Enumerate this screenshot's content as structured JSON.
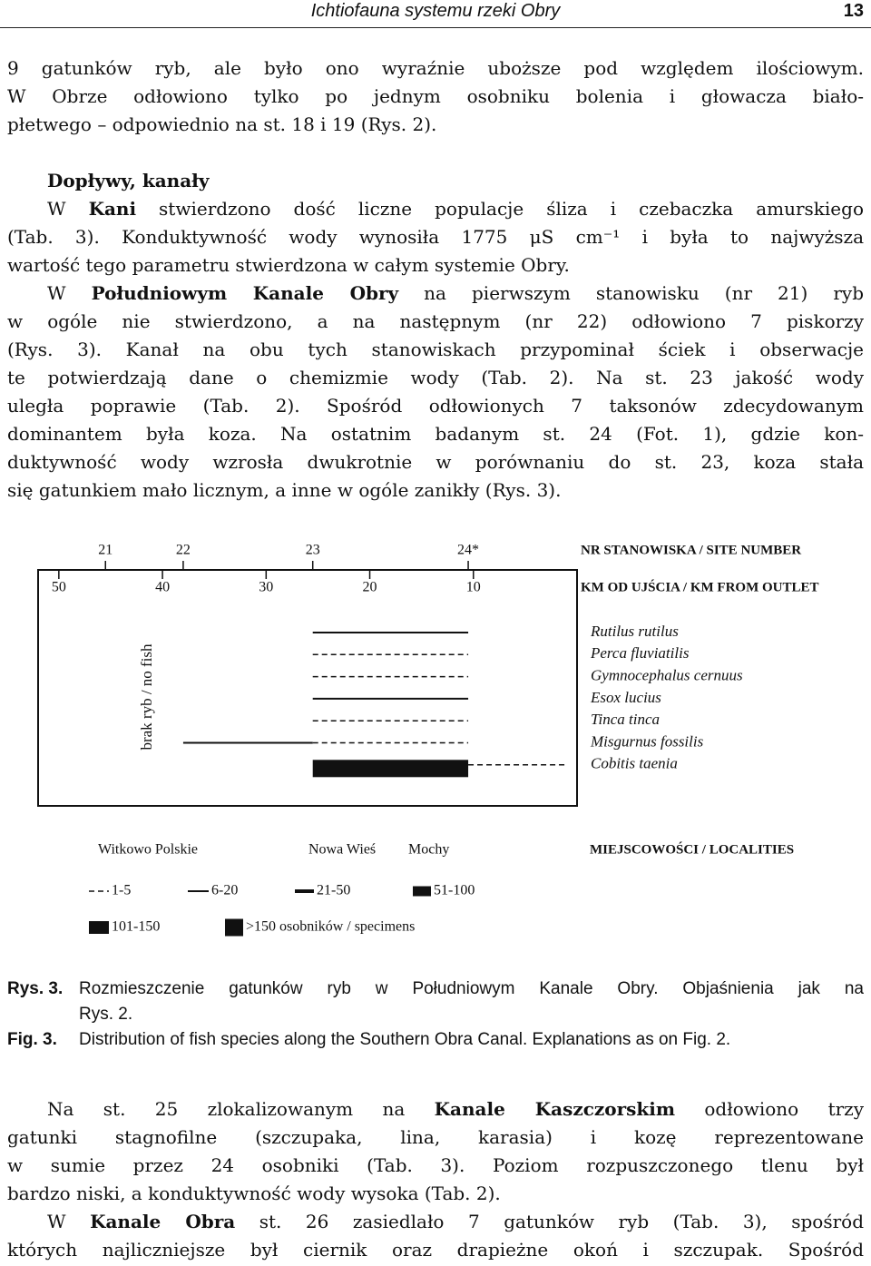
{
  "header": {
    "title": "Ichtiofauna systemu rzeki Obry",
    "page": "13"
  },
  "body_top": {
    "paragraph_1": [
      "9 gatunków ryb, ale było ono wyraźnie uboższe pod względem ilościowym.",
      "W Obrze odłowiono tylko po jednym osobniku bolenia i głowacza biało-",
      "płetwego – odpowiednio na st. 18 i 19 (Rys. 2)."
    ],
    "heading": "Dopływy, kanały",
    "paragraph_2": [
      [
        "W ",
        "Kani",
        " stwierdzono dość liczne populacje śliza i czebaczka amurskiego"
      ],
      "(Tab. 3). Konduktywność wody wynosiła 1775 μS cm⁻¹ i była to najwyższa",
      "wartość tego parametru stwierdzona w całym systemie Obry."
    ],
    "paragraph_3": [
      [
        "W ",
        "Południowym Kanale Obry",
        " na pierwszym stanowisku (nr 21) ryb"
      ],
      "w ogóle nie stwierdzono, a na następnym (nr 22) odłowiono 7 piskorzy",
      "(Rys. 3). Kanał na obu tych stanowiskach przypominał ściek i obserwacje",
      "te potwierdzają dane o chemizmie wody (Tab. 2). Na st. 23 jakość wody",
      "uległa poprawie (Tab. 2). Spośród odłowionych 7 taksonów zdecydowanym",
      "dominantem była koza. Na ostatnim badanym st. 24 (Fot. 1), gdzie kon-",
      "duktywność wody wzrosła dwukrotnie w porównaniu do st. 23, koza stała",
      "się gatunkiem mało licznym, a inne w ogóle zanikły (Rys. 3)."
    ]
  },
  "figure": {
    "site_axis_label": "NR STANOWISKA / SITE NUMBER",
    "sites": [
      {
        "label": "21",
        "km": 45.5
      },
      {
        "label": "22",
        "km": 38
      },
      {
        "label": "23",
        "km": 25.5
      },
      {
        "label": "24*",
        "km": 10.5
      }
    ],
    "km_axis_label": "KM OD UJŚCIA / KM FROM OUTLET",
    "km_lim": [
      52,
      0
    ],
    "km_ticks": [
      50,
      40,
      30,
      20,
      10
    ],
    "no_fish_label": "brak ryb / no fish",
    "species": [
      {
        "name": "Rutilus rutilus",
        "segments": [
          {
            "km": [
              25.5,
              10.5
            ],
            "class": 1
          }
        ]
      },
      {
        "name": "Perca fluviatilis",
        "segments": [
          {
            "km": [
              25.5,
              10.5
            ],
            "class": 0
          }
        ]
      },
      {
        "name": "Gymnocephalus cernuus",
        "segments": [
          {
            "km": [
              25.5,
              10.5
            ],
            "class": 0
          }
        ]
      },
      {
        "name": "Esox lucius",
        "segments": [
          {
            "km": [
              25.5,
              10.5
            ],
            "class": 1
          }
        ]
      },
      {
        "name": "Tinca tinca",
        "segments": [
          {
            "km": [
              25.5,
              10.5
            ],
            "class": 0
          }
        ]
      },
      {
        "name": "Misgurnus fossilis",
        "segments": [
          {
            "km": [
              38,
              25.5
            ],
            "class": 1
          },
          {
            "km": [
              25.5,
              10.5
            ],
            "class": 0
          }
        ]
      },
      {
        "name": "Cobitis taenia",
        "segments": [
          {
            "km": [
              25.5,
              10.5
            ],
            "class": 5
          },
          {
            "km": [
              10.5,
              1
            ],
            "class": 0
          }
        ]
      }
    ],
    "localities": [
      "Witkowo Polskie",
      "Nowa Wieś",
      "Mochy"
    ],
    "localities_label": "MIEJSCOWOŚCI / LOCALITIES",
    "legend": [
      "1-5",
      "6-20",
      "21-50",
      "51-100",
      "101-150",
      ">150 osobników / specimens"
    ]
  },
  "caption": {
    "pl_label": "Rys. 3.",
    "pl_lines": [
      "Rozmieszczenie gatunków ryb w Południowym Kanale Obry. Objaśnienia jak na",
      "Rys. 2."
    ],
    "en_label": "Fig. 3.",
    "en_lines": [
      "Distribution of fish species along the Southern Obra Canal. Explanations as on Fig. 2."
    ]
  },
  "body_bottom": {
    "paragraph_1": [
      [
        "Na st. 25 zlokalizowanym na ",
        "Kanale Kaszczorskim",
        " odłowiono trzy"
      ],
      "gatunki stagnofilne (szczupaka, lina, karasia) i kozę reprezentowane",
      "w sumie przez 24 osobniki (Tab. 3). Poziom rozpuszczonego tlenu był",
      "bardzo niski, a konduktywność wody wysoka (Tab. 2)."
    ],
    "paragraph_2": [
      [
        "W ",
        "Kanale Obra",
        " st. 26 zasiedlało 7 gatunków ryb (Tab. 3), spośród"
      ],
      "których najliczniejsze był ciernik oraz drapieżne okoń i szczupak. Spośród"
    ]
  }
}
